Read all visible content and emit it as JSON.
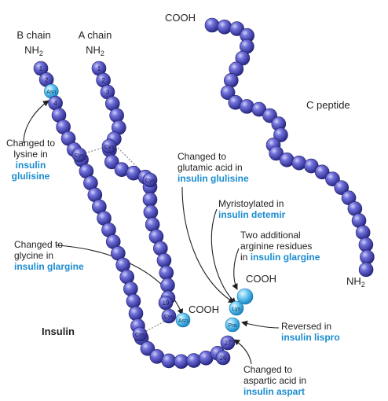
{
  "title": "Insulin",
  "chain_labels": {
    "b_chain": "B chain",
    "a_chain": "A chain",
    "c_peptide": "C peptide",
    "nh2_main": "NH",
    "nh2_sub": "2",
    "cooh": "COOH"
  },
  "residue_labels": {
    "b1": "1",
    "b2": "2",
    "b3_asn": "Asn",
    "b4": "4",
    "b26": "26",
    "b27": "27",
    "b28_pro": "Pro",
    "b29_lys": "Lys",
    "a1": "1",
    "a2": "2",
    "a3": "3",
    "a19": "19",
    "a20_cys": "Cys",
    "a21_asn": "Asn",
    "cys": "Cys"
  },
  "annotations": {
    "glulisine_b3": {
      "line1": "Changed to",
      "line2": "lysine in",
      "name1": "insulin",
      "name2": "glulisine"
    },
    "glulisine_b29": {
      "line1": "Changed to",
      "line2": "glutamic acid in",
      "name": "insulin glulisine"
    },
    "detemir": {
      "line1": "Myristoylated in",
      "name": "insulin detemir"
    },
    "glargine_arg": {
      "line1": "Two additional",
      "line2": "arginine residues",
      "prefix": "in ",
      "name": "insulin glargine"
    },
    "glargine_gly": {
      "line1": "Changed to",
      "line2": "glycine in",
      "name": "insulin glargine"
    },
    "lispro": {
      "line1": "Reversed in",
      "name": "insulin lispro"
    },
    "aspart": {
      "line1": "Changed to",
      "line2": "aspartic acid in",
      "name": "insulin aspart"
    }
  },
  "colors": {
    "bead_dark": "#2b2a86",
    "bead_mid": "#5b5bd0",
    "bead_light": "#c9c9f2",
    "highlight": "#1a9cdc",
    "highlight_light": "#bfe8fb",
    "label_blue": "#1a8ccf",
    "text": "#231f20"
  }
}
